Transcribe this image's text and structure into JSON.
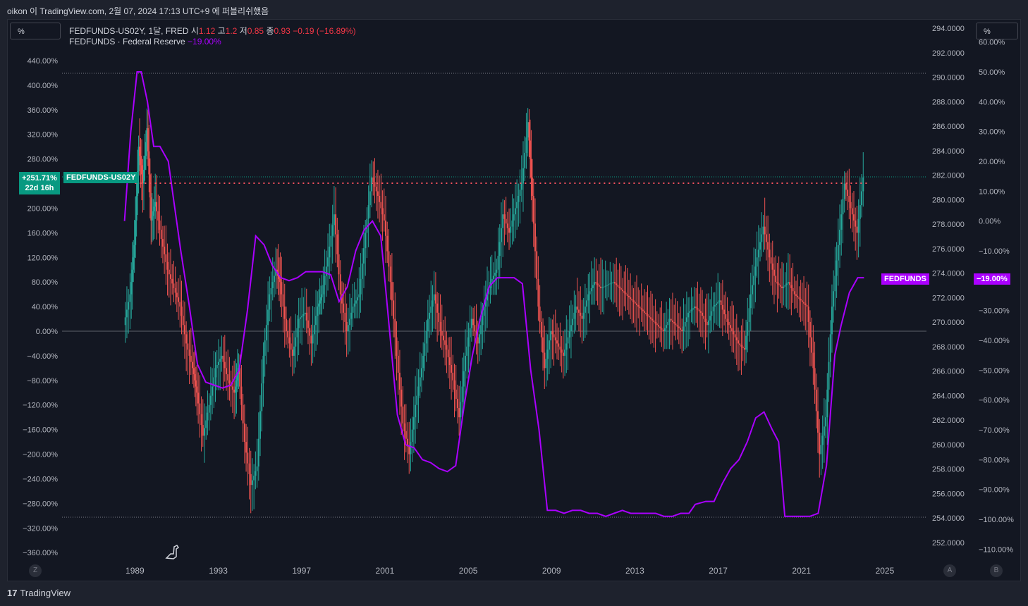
{
  "header": {
    "text": "oikon 이 TradingView.com, 2월 07, 2024 17:13 UTC+9 에 퍼블리쉬했음"
  },
  "left_unit": "%",
  "right_unit": "%",
  "legend": {
    "symbol": "FEDFUNDS-US02Y, 1달, FRED",
    "o_label": "시",
    "o_val": "1.12",
    "h_label": "고",
    "h_val": "1.2",
    "l_label": "저",
    "l_val": "0.85",
    "c_label": "종",
    "c_val": "0.93",
    "change": "−0.19 (−16.89%)",
    "series2": "FEDFUNDS · Federal Reserve",
    "series2_val": "−19.00%"
  },
  "tags": {
    "left_pct": "+251.71%",
    "left_time": "22d 16h",
    "symbol_tag": "FEDFUNDS-US02Y",
    "fedfunds_tag": "FEDFUNDS",
    "fedfunds_val": "−19.00%"
  },
  "corners": {
    "z": "Z",
    "a": "A",
    "b": "B"
  },
  "footer": {
    "logo": "17",
    "brand": "TradingView"
  },
  "colors": {
    "up": "#26a69a",
    "down": "#ef5350",
    "line": "#aa00ff",
    "bg": "#131722",
    "grid": "#2a2e39"
  },
  "chart_data": {
    "type": "line",
    "x_ticks": [
      "1989",
      "1993",
      "1997",
      "2001",
      "2005",
      "2009",
      "2013",
      "2017",
      "2021",
      "2025"
    ],
    "x_range": [
      1985.5,
      2027.0
    ],
    "left_axis": {
      "ticks": [
        "440.00%",
        "400.00%",
        "360.00%",
        "320.00%",
        "280.00%",
        "240.00%",
        "200.00%",
        "160.00%",
        "120.00%",
        "80.00%",
        "40.00%",
        "0.00%",
        "−40.00%",
        "−80.00%",
        "−120.00%",
        "−160.00%",
        "−200.00%",
        "−240.00%",
        "−280.00%",
        "−320.00%",
        "−360.00%"
      ],
      "range": [
        -380,
        450
      ]
    },
    "middle_axis": {
      "ticks": [
        "294.0000",
        "292.0000",
        "290.0000",
        "288.0000",
        "286.0000",
        "284.0000",
        "282.0000",
        "280.0000",
        "278.0000",
        "276.0000",
        "274.0000",
        "272.0000",
        "270.0000",
        "268.0000",
        "266.0000",
        "264.0000",
        "262.0000",
        "260.0000",
        "258.0000",
        "256.0000",
        "254.0000",
        "252.0000"
      ]
    },
    "right_axis": {
      "ticks": [
        "60.00%",
        "50.00%",
        "40.00%",
        "30.00%",
        "20.00%",
        "10.00%",
        "0.00%",
        "−10.00%",
        "−20.00%",
        "−30.00%",
        "−40.00%",
        "−50.00%",
        "−60.00%",
        "−70.00%",
        "−80.00%",
        "−90.00%",
        "−100.00%",
        "−110.00%"
      ],
      "range": [
        -115,
        62
      ]
    },
    "current_level_pct": 251.71,
    "candle_series_name": "FEDFUNDS-US02Y",
    "candles_pct_change": [
      [
        1988.5,
        10
      ],
      [
        1988.8,
        60
      ],
      [
        1989.0,
        140
      ],
      [
        1989.2,
        300
      ],
      [
        1989.4,
        240
      ],
      [
        1989.6,
        330
      ],
      [
        1989.8,
        180
      ],
      [
        1990.0,
        210
      ],
      [
        1990.3,
        150
      ],
      [
        1990.6,
        100
      ],
      [
        1990.9,
        70
      ],
      [
        1991.2,
        40
      ],
      [
        1991.5,
        -20
      ],
      [
        1991.8,
        -60
      ],
      [
        1992.0,
        -100
      ],
      [
        1992.3,
        -170
      ],
      [
        1992.6,
        -120
      ],
      [
        1992.9,
        -60
      ],
      [
        1993.2,
        -40
      ],
      [
        1993.5,
        -80
      ],
      [
        1993.8,
        -100
      ],
      [
        1994.0,
        -60
      ],
      [
        1994.3,
        -180
      ],
      [
        1994.6,
        -250
      ],
      [
        1994.9,
        -220
      ],
      [
        1995.2,
        -40
      ],
      [
        1995.5,
        60
      ],
      [
        1995.8,
        100
      ],
      [
        1996.0,
        80
      ],
      [
        1996.3,
        0
      ],
      [
        1996.6,
        -40
      ],
      [
        1996.9,
        20
      ],
      [
        1997.2,
        30
      ],
      [
        1997.5,
        -20
      ],
      [
        1997.8,
        40
      ],
      [
        1998.0,
        60
      ],
      [
        1998.3,
        120
      ],
      [
        1998.6,
        190
      ],
      [
        1998.9,
        60
      ],
      [
        1999.2,
        0
      ],
      [
        1999.5,
        40
      ],
      [
        1999.8,
        60
      ],
      [
        2000.1,
        160
      ],
      [
        2000.4,
        250
      ],
      [
        2000.7,
        220
      ],
      [
        2001.0,
        180
      ],
      [
        2001.3,
        80
      ],
      [
        2001.6,
        -40
      ],
      [
        2001.9,
        -150
      ],
      [
        2002.2,
        -200
      ],
      [
        2002.5,
        -120
      ],
      [
        2002.8,
        -60
      ],
      [
        2003.1,
        20
      ],
      [
        2003.4,
        60
      ],
      [
        2003.7,
        0
      ],
      [
        2004.0,
        -30
      ],
      [
        2004.3,
        -80
      ],
      [
        2004.6,
        -140
      ],
      [
        2004.9,
        -40
      ],
      [
        2005.2,
        20
      ],
      [
        2005.5,
        -20
      ],
      [
        2005.8,
        40
      ],
      [
        2006.1,
        80
      ],
      [
        2006.4,
        100
      ],
      [
        2006.7,
        190
      ],
      [
        2007.0,
        160
      ],
      [
        2007.3,
        200
      ],
      [
        2007.6,
        240
      ],
      [
        2007.9,
        340
      ],
      [
        2008.1,
        220
      ],
      [
        2008.4,
        40
      ],
      [
        2008.7,
        -60
      ],
      [
        2009.0,
        0
      ],
      [
        2009.3,
        -20
      ],
      [
        2009.6,
        -40
      ],
      [
        2009.9,
        0
      ],
      [
        2010.2,
        40
      ],
      [
        2010.5,
        20
      ],
      [
        2010.8,
        60
      ],
      [
        2011.1,
        80
      ],
      [
        2011.4,
        70
      ],
      [
        2011.7,
        75
      ],
      [
        2012.0,
        80
      ],
      [
        2012.3,
        70
      ],
      [
        2012.6,
        60
      ],
      [
        2012.9,
        50
      ],
      [
        2013.2,
        40
      ],
      [
        2013.5,
        30
      ],
      [
        2013.8,
        20
      ],
      [
        2014.1,
        10
      ],
      [
        2014.4,
        0
      ],
      [
        2014.7,
        20
      ],
      [
        2015.0,
        10
      ],
      [
        2015.3,
        0
      ],
      [
        2015.6,
        30
      ],
      [
        2015.9,
        40
      ],
      [
        2016.2,
        30
      ],
      [
        2016.5,
        10
      ],
      [
        2016.8,
        40
      ],
      [
        2017.1,
        50
      ],
      [
        2017.4,
        20
      ],
      [
        2017.7,
        0
      ],
      [
        2018.0,
        -20
      ],
      [
        2018.3,
        -30
      ],
      [
        2018.6,
        60
      ],
      [
        2018.9,
        120
      ],
      [
        2019.2,
        170
      ],
      [
        2019.5,
        120
      ],
      [
        2019.8,
        80
      ],
      [
        2020.1,
        70
      ],
      [
        2020.4,
        80
      ],
      [
        2020.7,
        60
      ],
      [
        2021.0,
        50
      ],
      [
        2021.3,
        40
      ],
      [
        2021.6,
        -60
      ],
      [
        2021.9,
        -200
      ],
      [
        2022.2,
        -140
      ],
      [
        2022.5,
        40
      ],
      [
        2022.8,
        140
      ],
      [
        2023.1,
        240
      ],
      [
        2023.4,
        200
      ],
      [
        2023.7,
        160
      ],
      [
        2024.0,
        250
      ]
    ],
    "line_series_name": "FEDFUNDS",
    "line_fedfunds_pct_change": [
      [
        1988.5,
        0
      ],
      [
        1988.8,
        30
      ],
      [
        1989.1,
        50
      ],
      [
        1989.3,
        50
      ],
      [
        1989.6,
        40
      ],
      [
        1989.9,
        25
      ],
      [
        1990.2,
        25
      ],
      [
        1990.6,
        20
      ],
      [
        1990.9,
        5
      ],
      [
        1991.2,
        -10
      ],
      [
        1991.6,
        -28
      ],
      [
        1992.0,
        -48
      ],
      [
        1992.4,
        -54
      ],
      [
        1992.8,
        -55
      ],
      [
        1993.2,
        -56
      ],
      [
        1993.6,
        -55
      ],
      [
        1994.0,
        -50
      ],
      [
        1994.4,
        -30
      ],
      [
        1994.8,
        -5
      ],
      [
        1995.2,
        -8
      ],
      [
        1995.6,
        -15
      ],
      [
        1996.0,
        -19
      ],
      [
        1996.4,
        -20
      ],
      [
        1996.8,
        -19
      ],
      [
        1997.2,
        -17
      ],
      [
        1997.6,
        -17
      ],
      [
        1998.0,
        -17
      ],
      [
        1998.4,
        -18
      ],
      [
        1998.8,
        -27
      ],
      [
        1999.2,
        -22
      ],
      [
        1999.6,
        -10
      ],
      [
        2000.0,
        -3
      ],
      [
        2000.4,
        0
      ],
      [
        2000.8,
        -5
      ],
      [
        2001.2,
        -35
      ],
      [
        2001.6,
        -65
      ],
      [
        2002.0,
        -75
      ],
      [
        2002.4,
        -76
      ],
      [
        2002.8,
        -80
      ],
      [
        2003.2,
        -81
      ],
      [
        2003.6,
        -83
      ],
      [
        2004.0,
        -84
      ],
      [
        2004.4,
        -82
      ],
      [
        2004.8,
        -62
      ],
      [
        2005.2,
        -45
      ],
      [
        2005.6,
        -32
      ],
      [
        2006.0,
        -22
      ],
      [
        2006.4,
        -19
      ],
      [
        2006.8,
        -19
      ],
      [
        2007.2,
        -19
      ],
      [
        2007.6,
        -21
      ],
      [
        2008.0,
        -50
      ],
      [
        2008.4,
        -70
      ],
      [
        2008.8,
        -97
      ],
      [
        2009.2,
        -97
      ],
      [
        2009.6,
        -98
      ],
      [
        2010.0,
        -97
      ],
      [
        2010.4,
        -97
      ],
      [
        2010.8,
        -98
      ],
      [
        2011.2,
        -98
      ],
      [
        2011.6,
        -99
      ],
      [
        2012.0,
        -98
      ],
      [
        2012.4,
        -97
      ],
      [
        2012.8,
        -98
      ],
      [
        2013.2,
        -98
      ],
      [
        2013.6,
        -98
      ],
      [
        2014.0,
        -98
      ],
      [
        2014.4,
        -99
      ],
      [
        2014.8,
        -99
      ],
      [
        2015.2,
        -98
      ],
      [
        2015.6,
        -98
      ],
      [
        2015.9,
        -95
      ],
      [
        2016.4,
        -94
      ],
      [
        2016.8,
        -94
      ],
      [
        2017.2,
        -88
      ],
      [
        2017.6,
        -83
      ],
      [
        2018.0,
        -80
      ],
      [
        2018.4,
        -74
      ],
      [
        2018.8,
        -66
      ],
      [
        2019.2,
        -64
      ],
      [
        2019.6,
        -70
      ],
      [
        2019.9,
        -74
      ],
      [
        2020.2,
        -99
      ],
      [
        2020.6,
        -99
      ],
      [
        2021.0,
        -99
      ],
      [
        2021.4,
        -99
      ],
      [
        2021.8,
        -98
      ],
      [
        2022.2,
        -82
      ],
      [
        2022.6,
        -45
      ],
      [
        2022.9,
        -35
      ],
      [
        2023.3,
        -24
      ],
      [
        2023.7,
        -19
      ],
      [
        2024.0,
        -19
      ]
    ]
  }
}
